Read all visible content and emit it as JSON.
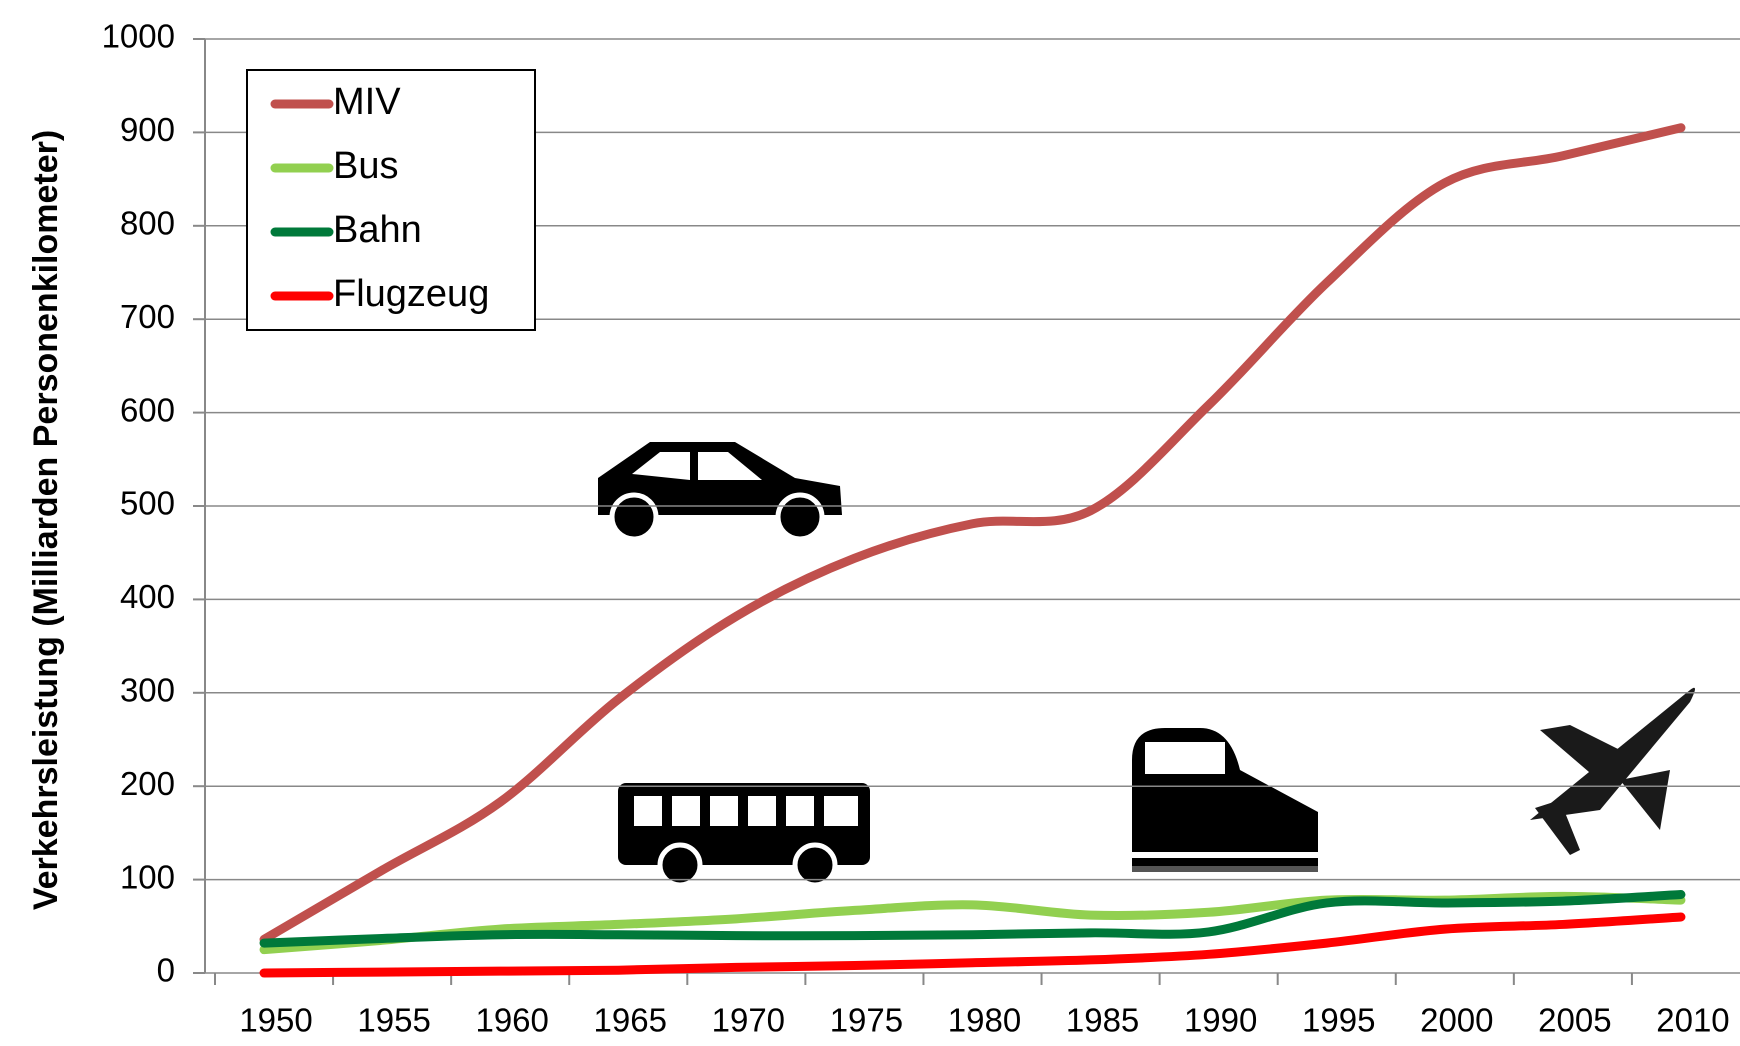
{
  "chart_data": {
    "type": "line",
    "y_label": "Verkehrsleistung (Milliarden Personenkilometer)",
    "categories": [
      "1950",
      "1955",
      "1960",
      "1965",
      "1970",
      "1975",
      "1980",
      "1985",
      "1990",
      "1995",
      "2000",
      "2005",
      "2010"
    ],
    "series": [
      {
        "name": "MIV",
        "color": "#c0504d",
        "values": [
          36,
          110,
          183,
          293,
          382,
          444,
          481,
          495,
          608,
          739,
          846,
          875,
          905
        ]
      },
      {
        "name": "Bus",
        "color": "#92d050",
        "values": [
          25,
          35,
          47,
          52,
          58,
          67,
          73,
          62,
          65,
          78,
          78,
          82,
          78
        ]
      },
      {
        "name": "Bahn",
        "color": "#00793a",
        "values": [
          32,
          37,
          41,
          41,
          40,
          40,
          41,
          43,
          44,
          75,
          75,
          77,
          84
        ]
      },
      {
        "name": "Flugzeug",
        "color": "#ff0000",
        "values": [
          0,
          1,
          2,
          3,
          6,
          8,
          11,
          14,
          20,
          32,
          47,
          52,
          60
        ]
      }
    ],
    "ylim": [
      0,
      1000
    ],
    "yticks": [
      0,
      100,
      200,
      300,
      400,
      500,
      600,
      700,
      800,
      900,
      1000
    ],
    "grid": true,
    "legend": "upper left"
  }
}
